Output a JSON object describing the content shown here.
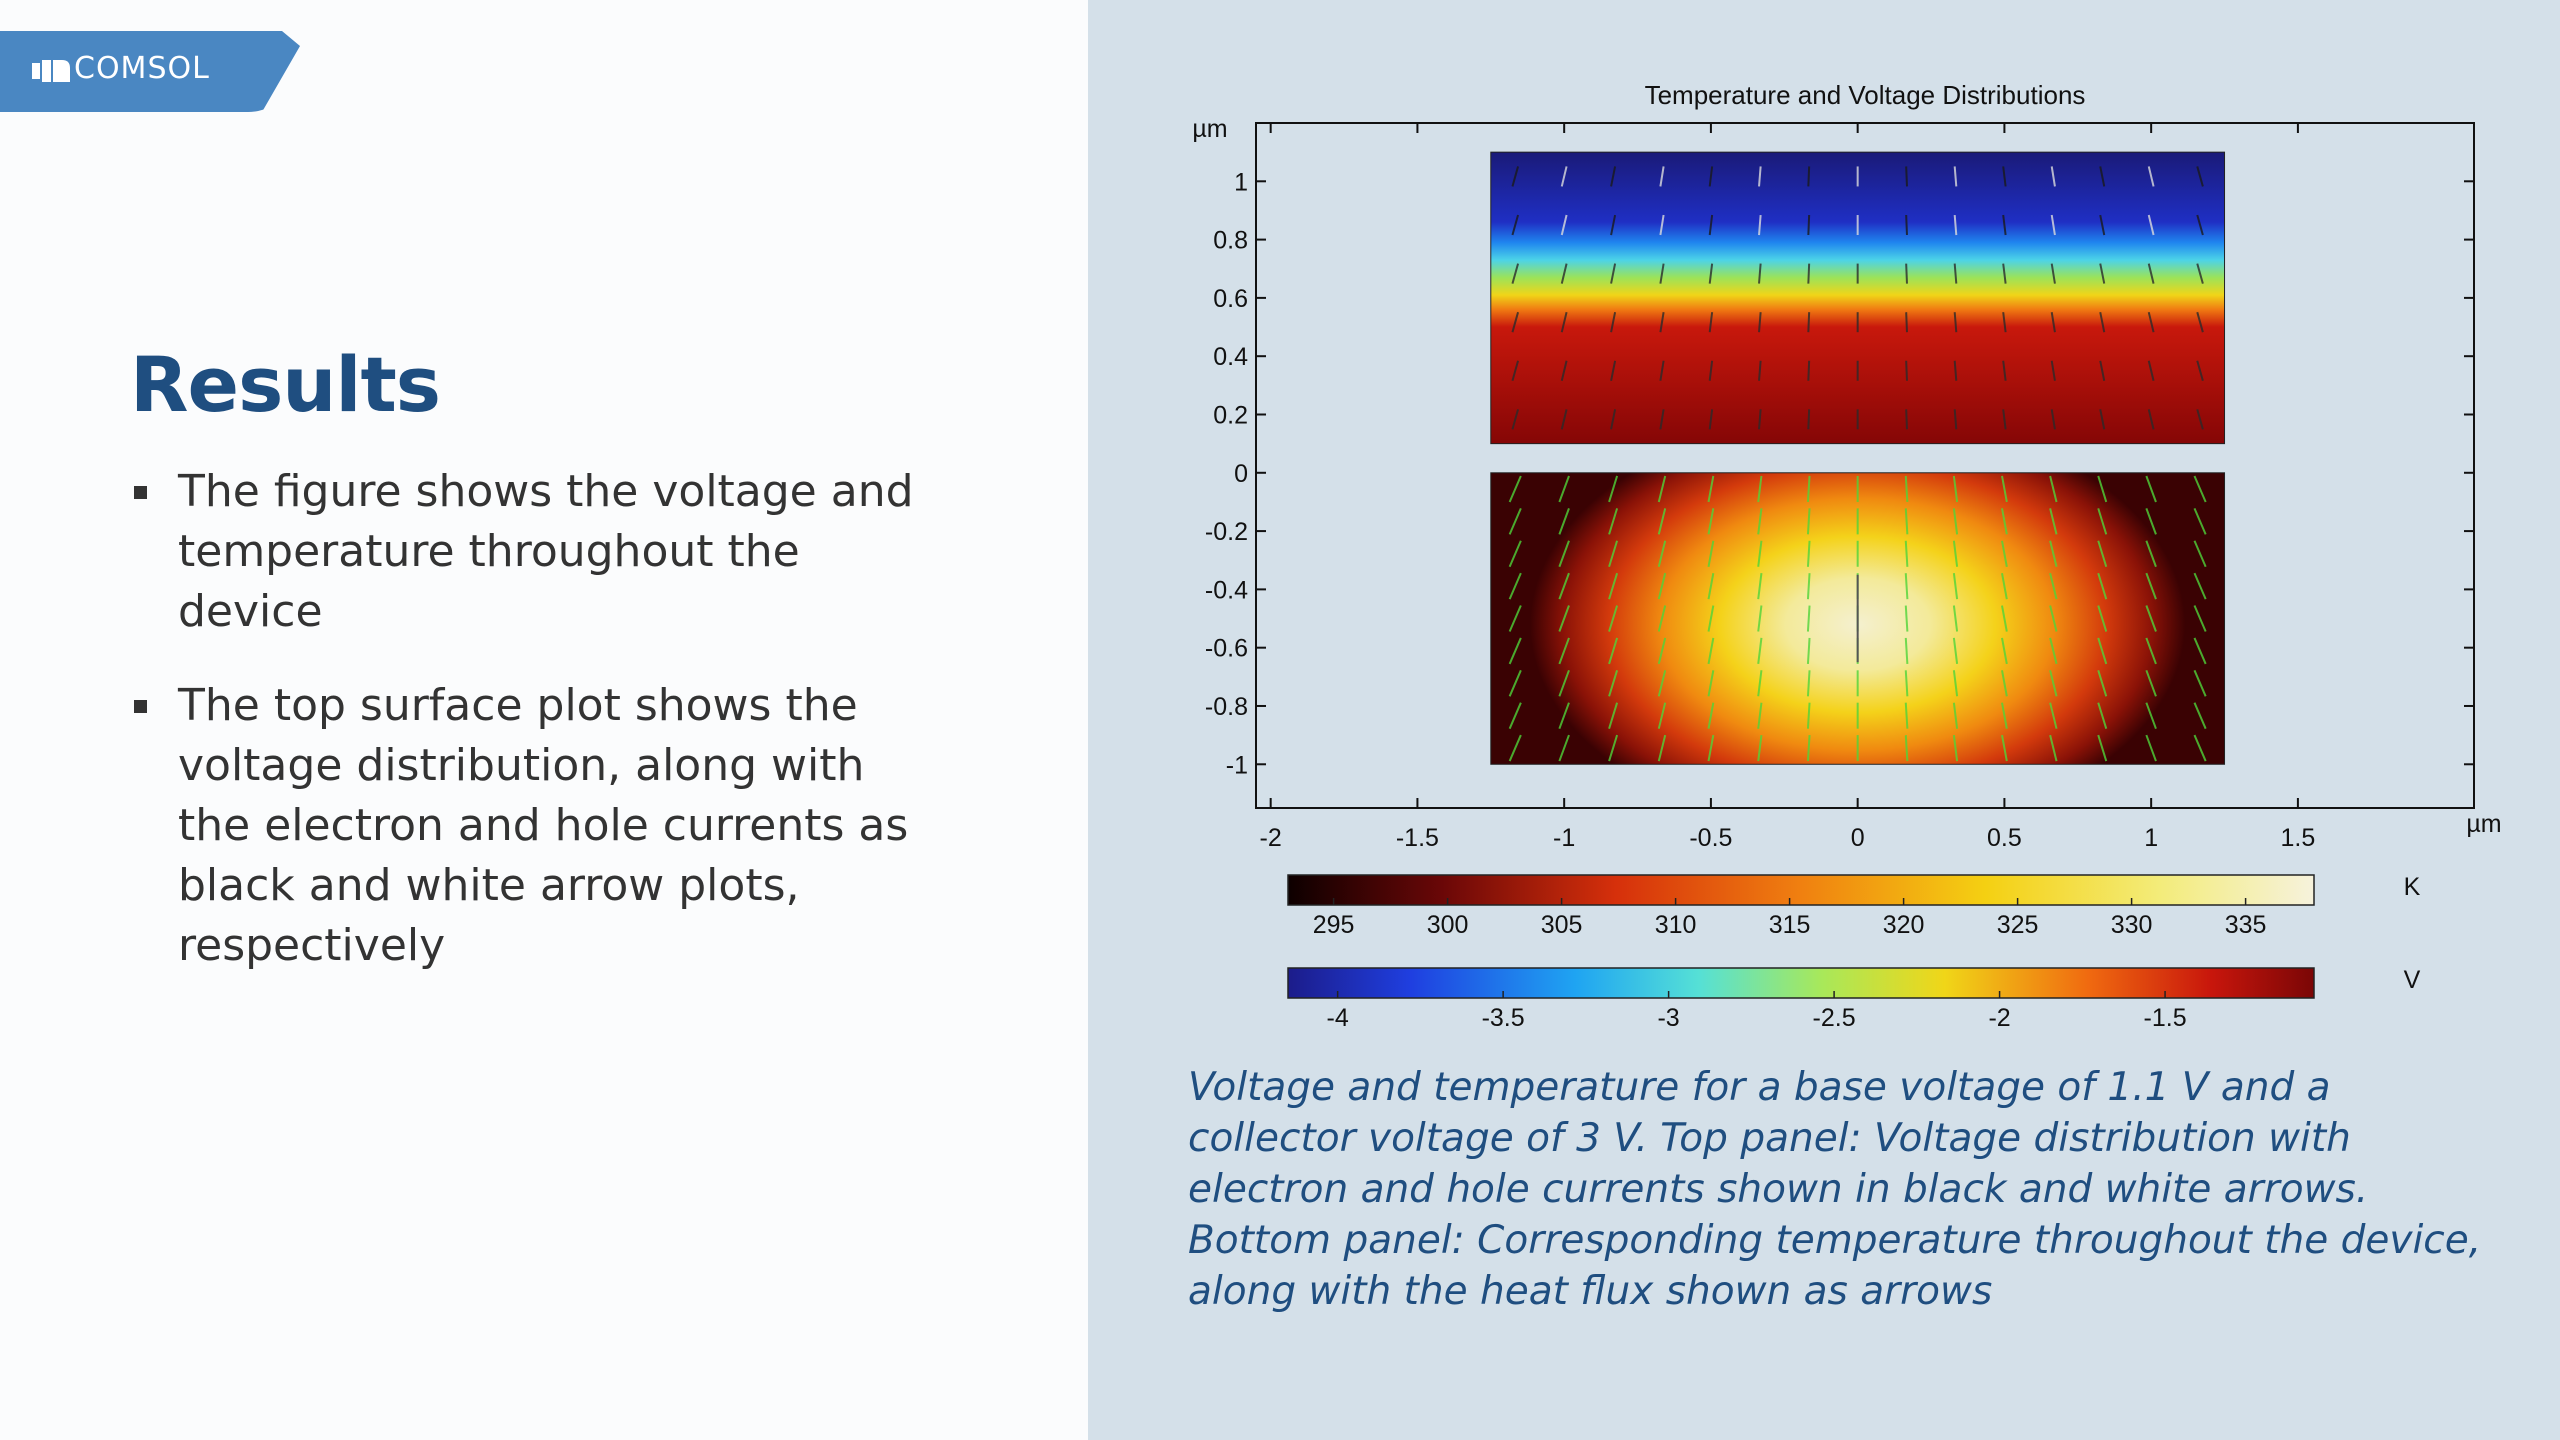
{
  "logo": {
    "text": "COMSOL",
    "icon": "comsol-logo-icon"
  },
  "slide": {
    "title": "Results",
    "bullets": [
      "The figure shows the voltage and temperature throughout the device",
      "The top surface plot shows the voltage distribution, along with the electron and hole currents as black and white arrow plots, respectively"
    ],
    "caption": "Voltage and temperature for a base voltage of 1.1 V and a collector voltage of 3 V. Top panel: Voltage distribution with electron and hole currents shown in black and white arrows. Bottom panel: Corresponding temperature throughout the device, along with the heat flux shown as arrows"
  },
  "colors": {
    "title_blue": "#1f4e80",
    "logo_blue": "#4a87c2",
    "right_bg": "#d4e0e9"
  },
  "chart_data": {
    "type": "heatmap",
    "title": "Temperature and Voltage Distributions",
    "x_unit": "µm",
    "y_unit": "µm",
    "xlim": [
      -2.05,
      2.1
    ],
    "ylim": [
      -1.15,
      1.2
    ],
    "x_ticks": [
      -2,
      -1.5,
      -1,
      -0.5,
      0,
      0.5,
      1,
      1.5
    ],
    "x_tick_labels": [
      "-2",
      "-1.5",
      "-1",
      "-0.5",
      "0",
      "0.5",
      "1",
      "1.5"
    ],
    "y_ticks": [
      1,
      0.8,
      0.6,
      0.4,
      0.2,
      0,
      -0.2,
      -0.4,
      -0.6,
      -0.8,
      -1
    ],
    "y_tick_labels": [
      "1",
      "0.8",
      "0.6",
      "0.4",
      "0.2",
      "0",
      "-0.2",
      "-0.4",
      "-0.6",
      "-0.8",
      "-1"
    ],
    "panels": [
      {
        "name": "voltage",
        "x_range": [
          -1.25,
          1.25
        ],
        "y_range": [
          0.1,
          1.1
        ],
        "colormap": "rainbow",
        "arrows": "electron and hole currents"
      },
      {
        "name": "temperature",
        "x_range": [
          -1.25,
          1.25
        ],
        "y_range": [
          -1.0,
          0.0
        ],
        "colormap": "heat",
        "arrows": "heat flux"
      }
    ],
    "colorbars": [
      {
        "unit": "K",
        "colormap": "heat",
        "range": [
          293,
          338
        ],
        "ticks": [
          295,
          300,
          305,
          310,
          315,
          320,
          325,
          330,
          335
        ],
        "tick_labels": [
          "295",
          "300",
          "305",
          "310",
          "315",
          "320",
          "325",
          "330",
          "335"
        ]
      },
      {
        "unit": "V",
        "colormap": "rainbow",
        "range": [
          -4.15,
          -1.05
        ],
        "ticks": [
          -4,
          -3.5,
          -3,
          -2.5,
          -2,
          -1.5
        ],
        "tick_labels": [
          "-4",
          "-3.5",
          "-3",
          "-2.5",
          "-2",
          "-1.5"
        ]
      }
    ],
    "grid": false
  }
}
